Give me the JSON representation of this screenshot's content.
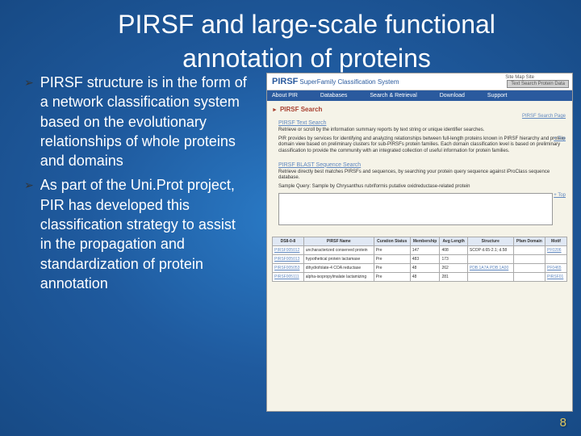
{
  "title": "PIRSF and large-scale functional annotation of proteins",
  "bullets": [
    "PIRSF structure is in the form of a network classification system based on the evolutionary relationships of whole proteins and domains",
    "As part of the Uni.Prot project, PIR has developed this classification strategy to assist in the propagation and standardization of protein annotation"
  ],
  "screenshot": {
    "logo": "PIRSF",
    "subtitle": "SuperFamily Classification System",
    "top_links": "Site Map   Site",
    "search_btn": "Text Search Protein Data",
    "nav": [
      "About PIR",
      "Databases",
      "Search & Retrieval",
      "Download",
      "Support"
    ],
    "section1_h": "PIRSF Search",
    "section1_top": "PIRSF Search Page",
    "section2_h": "PIRSF Text Search",
    "section2_desc": "Retrieve or scroll by the information summary reports by text string or unique identifier searches.",
    "section2_top": "+ Top",
    "section2_para": "PIR provides by services for identifying and analyzing relationships between full-length proteins known in PIRSF hierarchy and protein domain view based on preliminary clusters for sub-PIRSFs protein families. Each domain classification level is based on preliminary classification to provide the community with an integrated collection of useful information for protein families.",
    "section3_h": "PIRSF BLAST Sequence Search",
    "section3_desc": "Retrieve directly best matches PIRSFs and sequences, by searching your protein query sequence against iProClass sequence database.",
    "section3_top": "+ Top",
    "section3_para": "Sample Query: Sample by Chrysanthus rubriformis putative oxidreductase-related protein",
    "table_headers": [
      "DS8-0-8",
      "PIRSF Name",
      "Curation Status",
      "Membership",
      "Avg Length",
      "Structure",
      "Pfam Domain",
      "Motif"
    ],
    "table_rows": [
      [
        {
          "a": "PIRSF005012"
        },
        "uncharacterized conserved protein",
        "Pre",
        "147",
        "408",
        "SCOP d.65-2.1; d.58",
        "",
        {
          "a": "PF0206"
        }
      ],
      [
        {
          "a": "PIRSF005013"
        },
        "hypothetical protein lactamase",
        "Pre",
        "483",
        "173",
        "",
        "",
        ""
      ],
      [
        {
          "a": "PIRSF005053"
        },
        "dihydrofolate-4 COA reductase",
        "Pre",
        "48",
        "262",
        {
          "a": "PDB 1A7A  PDB 1A00"
        },
        "",
        {
          "a": "PF0465"
        }
      ],
      [
        {
          "a": "PIRSF005111"
        },
        "alpha-isopropylmalate lactamizing",
        "Pre",
        "48",
        "281",
        "",
        "",
        {
          "a": "PIRSF01"
        }
      ]
    ]
  },
  "page_number": "8"
}
